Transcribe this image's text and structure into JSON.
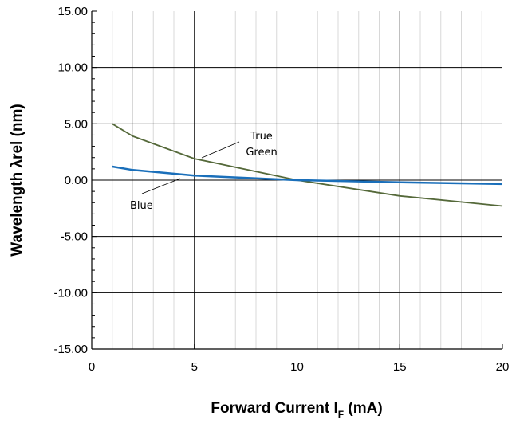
{
  "chart_data": {
    "type": "line",
    "title": "",
    "xlabel": "Forward Current I",
    "xlabel_sub": "F",
    "xlabel_unit": " (mA)",
    "ylabel": "Wavelength λrel (nm)",
    "xlim": [
      0,
      20
    ],
    "ylim": [
      -15,
      15
    ],
    "x_ticks": [
      "0",
      "5",
      "10",
      "15",
      "20"
    ],
    "y_ticks": [
      "15.00",
      "10.00",
      "5.00",
      "0.00",
      "-5.00",
      "-10.00",
      "-15.00"
    ],
    "grid": true,
    "legend": "none",
    "annotations": [
      {
        "series": "True Green",
        "lines": [
          "True",
          "Green"
        ]
      },
      {
        "series": "Blue",
        "lines": [
          "Blue"
        ]
      }
    ],
    "series": [
      {
        "name": "True Green",
        "color": "#55693a",
        "x": [
          1,
          2,
          5,
          10,
          15,
          20
        ],
        "y": [
          5.0,
          3.9,
          1.9,
          0.0,
          -1.4,
          -2.3
        ]
      },
      {
        "name": "Blue",
        "color": "#1a6fba",
        "x": [
          1,
          2,
          5,
          10,
          15,
          20
        ],
        "y": [
          1.2,
          0.9,
          0.4,
          0.0,
          -0.2,
          -0.35
        ]
      }
    ]
  }
}
